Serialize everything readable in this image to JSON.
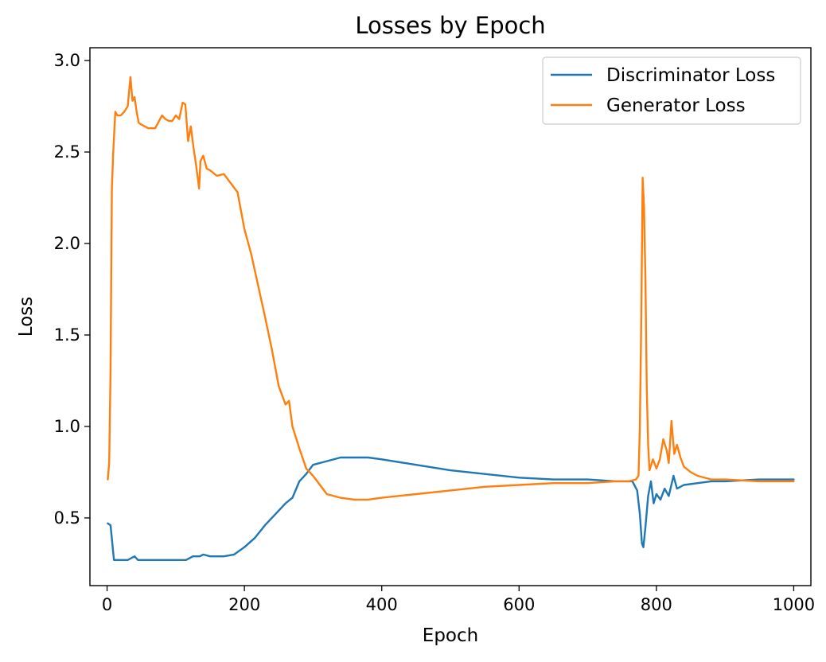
{
  "chart_data": {
    "type": "line",
    "title": "Losses by Epoch",
    "xlabel": "Epoch",
    "ylabel": "Loss",
    "xlim": [
      -25,
      1025
    ],
    "ylim": [
      0.13,
      3.07
    ],
    "xticks": [
      0,
      200,
      400,
      600,
      800,
      1000
    ],
    "yticks": [
      0.5,
      1.0,
      1.5,
      2.0,
      2.5,
      3.0
    ],
    "xtick_labels": [
      "0",
      "200",
      "400",
      "600",
      "800",
      "1000"
    ],
    "ytick_labels": [
      "0.5",
      "1.0",
      "1.5",
      "2.0",
      "2.5",
      "3.0"
    ],
    "grid": false,
    "legend_position": "top-right",
    "series": [
      {
        "name": "Discriminator Loss",
        "color": "#1f77b4",
        "x": [
          1,
          5,
          10,
          20,
          30,
          35,
          40,
          45,
          60,
          80,
          100,
          115,
          125,
          135,
          140,
          150,
          170,
          185,
          200,
          215,
          230,
          245,
          260,
          270,
          280,
          290,
          300,
          320,
          340,
          360,
          380,
          400,
          450,
          500,
          550,
          600,
          650,
          700,
          740,
          765,
          772,
          776,
          779,
          781,
          784,
          788,
          792,
          796,
          800,
          806,
          812,
          818,
          825,
          830,
          840,
          860,
          880,
          900,
          950,
          1000
        ],
        "y": [
          0.47,
          0.46,
          0.27,
          0.27,
          0.27,
          0.28,
          0.29,
          0.27,
          0.27,
          0.27,
          0.27,
          0.27,
          0.29,
          0.29,
          0.3,
          0.29,
          0.29,
          0.3,
          0.34,
          0.39,
          0.46,
          0.52,
          0.58,
          0.61,
          0.7,
          0.74,
          0.79,
          0.81,
          0.83,
          0.83,
          0.83,
          0.82,
          0.79,
          0.76,
          0.74,
          0.72,
          0.71,
          0.71,
          0.7,
          0.7,
          0.65,
          0.52,
          0.36,
          0.34,
          0.45,
          0.62,
          0.7,
          0.58,
          0.63,
          0.6,
          0.66,
          0.62,
          0.73,
          0.66,
          0.68,
          0.69,
          0.7,
          0.7,
          0.71,
          0.71
        ]
      },
      {
        "name": "Generator Loss",
        "color": "#ff7f0e",
        "x": [
          1,
          3,
          5,
          7,
          9,
          12,
          15,
          20,
          25,
          30,
          34,
          37,
          40,
          43,
          46,
          50,
          60,
          70,
          80,
          85,
          90,
          95,
          100,
          105,
          110,
          114,
          118,
          122,
          126,
          130,
          134,
          136,
          140,
          145,
          150,
          160,
          170,
          180,
          190,
          200,
          210,
          220,
          230,
          240,
          250,
          260,
          265,
          270,
          280,
          290,
          300,
          310,
          320,
          340,
          360,
          380,
          400,
          450,
          500,
          550,
          600,
          650,
          700,
          740,
          760,
          770,
          774,
          776,
          778,
          780,
          782,
          784,
          786,
          788,
          790,
          795,
          800,
          805,
          810,
          815,
          818,
          822,
          826,
          830,
          835,
          840,
          850,
          860,
          880,
          900,
          950,
          1000
        ],
        "y": [
          0.71,
          0.8,
          1.3,
          2.3,
          2.5,
          2.72,
          2.7,
          2.7,
          2.72,
          2.75,
          2.91,
          2.78,
          2.8,
          2.72,
          2.66,
          2.65,
          2.63,
          2.63,
          2.7,
          2.68,
          2.67,
          2.67,
          2.7,
          2.68,
          2.77,
          2.76,
          2.56,
          2.64,
          2.52,
          2.42,
          2.3,
          2.45,
          2.48,
          2.41,
          2.4,
          2.37,
          2.38,
          2.33,
          2.28,
          2.08,
          1.94,
          1.77,
          1.6,
          1.42,
          1.22,
          1.12,
          1.14,
          1.0,
          0.88,
          0.77,
          0.73,
          0.68,
          0.63,
          0.61,
          0.6,
          0.6,
          0.61,
          0.63,
          0.65,
          0.67,
          0.68,
          0.69,
          0.69,
          0.7,
          0.7,
          0.71,
          0.73,
          1.0,
          1.6,
          2.36,
          2.2,
          1.8,
          1.2,
          0.9,
          0.76,
          0.82,
          0.77,
          0.82,
          0.93,
          0.87,
          0.8,
          1.03,
          0.85,
          0.9,
          0.83,
          0.78,
          0.75,
          0.73,
          0.71,
          0.71,
          0.7,
          0.7
        ]
      }
    ]
  }
}
